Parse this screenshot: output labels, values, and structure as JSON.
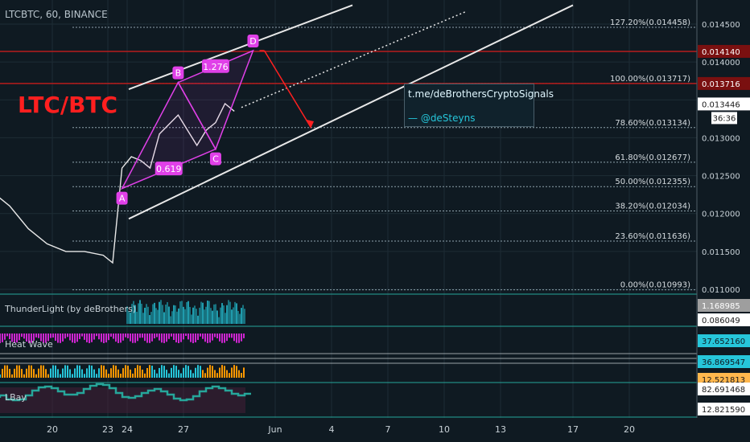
{
  "header": {
    "symbol": "LTCBTC, 60, BINANCE"
  },
  "overlay_title": "LTC/BTC",
  "watermark": {
    "line1": "t.me/deBrothersCryptoSignals",
    "line2": "— @deSteyns"
  },
  "colors": {
    "background": "#0f1a22",
    "grid": "#1e2c35",
    "price": "#e8e8e8",
    "pattern": "#e040e8",
    "resistance": "#b71c1c",
    "fib": "#8fa3ad",
    "channel": "#e8e8e8",
    "title": "#ff1f1f",
    "indicator_cyan": "#26c6da",
    "heatwave_magenta": "#ff28ff",
    "heatwave_orange": "#ff9800"
  },
  "chart_data": {
    "type": "line",
    "symbol": "LTCBTC",
    "interval": "60",
    "exchange": "BINANCE",
    "x_ticks": [
      "20",
      "23",
      "24",
      "27",
      "Jun",
      "4",
      "7",
      "10",
      "13",
      "17",
      "20"
    ],
    "y_ticks": [
      0.0145,
      0.014,
      0.0135,
      0.013,
      0.0125,
      0.012,
      0.0115,
      0.011
    ],
    "y_tick_labels": [
      "0.014500",
      "0.014000",
      "0.013500",
      "0.013000",
      "0.012500",
      "0.012000",
      "0.011500",
      "0.011000"
    ],
    "ylim": [
      0.01099,
      0.01472
    ],
    "price_series": {
      "x": [
        "2019-05-17",
        "2019-05-18",
        "2019-05-19",
        "2019-05-20",
        "2019-05-21",
        "2019-05-22",
        "2019-05-23",
        "2019-05-23 12:00",
        "2019-05-24",
        "2019-05-24 12:00",
        "2019-05-25",
        "2019-05-25 12:00",
        "2019-05-26",
        "2019-05-27",
        "2019-05-27 12:00",
        "2019-05-28",
        "2019-05-28 12:00",
        "2019-05-29",
        "2019-05-29 12:00",
        "2019-05-30"
      ],
      "values": [
        0.0123,
        0.0121,
        0.0118,
        0.0116,
        0.0115,
        0.0115,
        0.01145,
        0.01135,
        0.0126,
        0.01275,
        0.0127,
        0.0126,
        0.01305,
        0.0133,
        0.0131,
        0.0129,
        0.0131,
        0.0132,
        0.01345,
        0.01335
      ]
    },
    "harmonic_pattern": {
      "points": [
        {
          "label": "A",
          "x": "2019-05-24",
          "y": 0.01233
        },
        {
          "label": "B",
          "x": "2019-05-27",
          "y": 0.01373
        },
        {
          "label": "C",
          "x": "2019-05-29",
          "y": 0.01285
        },
        {
          "label": "D",
          "x": "2019-05-31",
          "y": 0.01415
        }
      ],
      "ratio_labels": [
        "0.619",
        "1.276"
      ]
    },
    "fibonacci_levels": [
      {
        "label": "127.20%(0.014458)",
        "value": 0.014458
      },
      {
        "label": "100.00%(0.013717)",
        "value": 0.013717
      },
      {
        "label": "78.60%(0.013134)",
        "value": 0.013134
      },
      {
        "label": "61.80%(0.012677)",
        "value": 0.012677
      },
      {
        "label": "50.00%(0.012355)",
        "value": 0.012355
      },
      {
        "label": "38.20%(0.012034)",
        "value": 0.012034
      },
      {
        "label": "23.60%(0.011636)",
        "value": 0.011636
      },
      {
        "label": "0.00%(0.010993)",
        "value": 0.010993
      }
    ],
    "resistance_levels": [
      {
        "label": "0.014140",
        "value": 0.01414
      },
      {
        "label": "0.013716",
        "value": 0.013716
      }
    ],
    "current_price": {
      "label": "0.013446",
      "value": 0.013446
    },
    "countdown": "36:36",
    "indicators": [
      {
        "name": "ThunderLight (by deBrothers)",
        "labels": [
          "1.168985",
          "0.086049"
        ]
      },
      {
        "name": "Heat Wave",
        "labels": [
          "37.652160",
          "36.869547",
          "12.521813"
        ]
      },
      {
        "name": "LBay",
        "labels": [
          "82.691468",
          "12.821590"
        ]
      }
    ]
  }
}
